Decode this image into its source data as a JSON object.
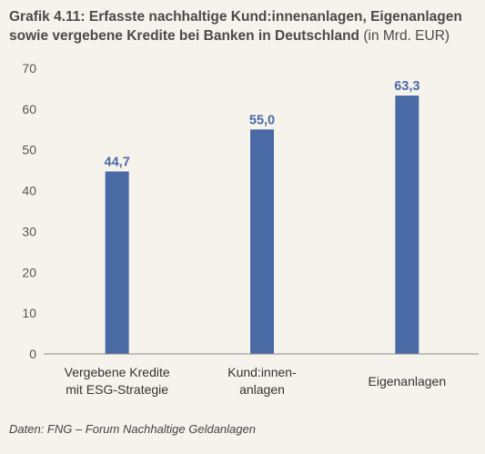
{
  "title": {
    "main": "Grafik 4.11: Erfasste nachhaltige Kund:innenanlagen, Eigenanlagen sowie vergebene Kredite bei Banken in Deutschland",
    "unit": "(in Mrd. EUR)"
  },
  "source": "Daten: FNG – Forum Nachhaltige Geldanlagen",
  "chart_data": {
    "type": "bar",
    "categories": [
      [
        "Vergebene Kredite",
        "mit ESG-Strategie"
      ],
      [
        "Kund:innen-",
        "anlagen"
      ],
      [
        "Eigenanlagen"
      ]
    ],
    "values": [
      44.7,
      55.0,
      63.3
    ],
    "value_labels": [
      "44,7",
      "55,0",
      "63,3"
    ],
    "yticks": [
      0,
      10,
      20,
      30,
      40,
      50,
      60,
      70
    ],
    "ylim": [
      0,
      70
    ],
    "grid": false,
    "legend": "none",
    "colors": {
      "bar": "#4a6aa5",
      "value_label": "#4a6aa5",
      "axis": "#888888"
    }
  }
}
